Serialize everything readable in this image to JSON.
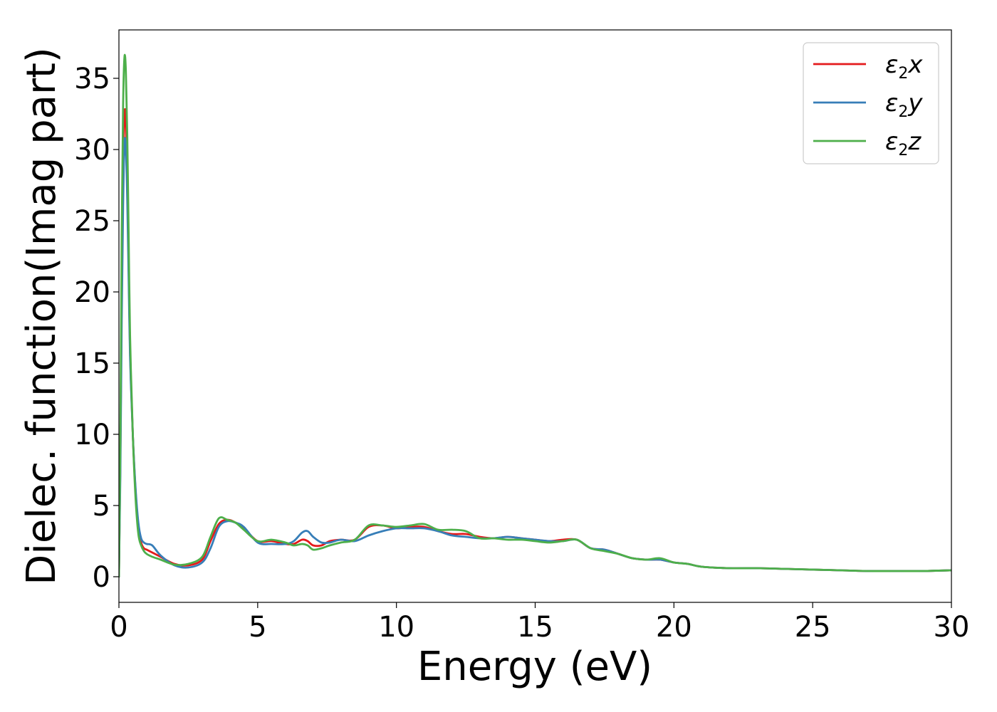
{
  "chart_data": {
    "type": "line",
    "xlabel": "Energy (eV)",
    "ylabel": "Dielec. function(Imag part)",
    "xlim": [
      0,
      30
    ],
    "ylim": [
      -1.8,
      38.4
    ],
    "xticks": [
      0,
      5,
      10,
      15,
      20,
      25,
      30
    ],
    "yticks": [
      0,
      5,
      10,
      15,
      20,
      25,
      30,
      35
    ],
    "grid": false,
    "legend_position": "top-right",
    "series": [
      {
        "name": "ε2x",
        "name_base": "ε",
        "name_sub": "2",
        "name_suffix": "x",
        "color": "#e41a1c",
        "x": [
          0,
          0.05,
          0.1,
          0.15,
          0.2,
          0.25,
          0.3,
          0.35,
          0.4,
          0.5,
          0.6,
          0.7,
          0.8,
          0.9,
          1.0,
          1.2,
          1.5,
          2.0,
          2.5,
          3.0,
          3.3,
          3.6,
          3.9,
          4.2,
          4.5,
          5.0,
          5.5,
          6.0,
          6.3,
          6.6,
          6.8,
          7.0,
          7.3,
          7.6,
          8.0,
          8.5,
          9.0,
          9.5,
          10.0,
          10.5,
          11.0,
          11.5,
          12.0,
          12.5,
          13.0,
          13.5,
          14.0,
          14.5,
          15.0,
          15.5,
          16.0,
          16.5,
          17.0,
          17.5,
          18.0,
          18.5,
          19.0,
          19.5,
          20.0,
          20.5,
          21.0,
          22.0,
          23.0,
          24.0,
          25.0,
          26.0,
          27.0,
          28.0,
          29.0,
          30.0
        ],
        "values": [
          0,
          8,
          20,
          28,
          32.5,
          32,
          28,
          22,
          16,
          10,
          6,
          3.5,
          2.4,
          2.0,
          1.9,
          1.7,
          1.4,
          0.9,
          0.8,
          1.2,
          2.5,
          3.7,
          4.0,
          3.8,
          3.4,
          2.5,
          2.5,
          2.3,
          2.3,
          2.6,
          2.5,
          2.2,
          2.2,
          2.5,
          2.6,
          2.6,
          3.5,
          3.6,
          3.4,
          3.5,
          3.5,
          3.2,
          3.0,
          3.0,
          2.8,
          2.7,
          2.8,
          2.7,
          2.6,
          2.5,
          2.6,
          2.6,
          2.0,
          1.9,
          1.6,
          1.3,
          1.2,
          1.2,
          1.0,
          0.9,
          0.7,
          0.6,
          0.6,
          0.55,
          0.5,
          0.45,
          0.4,
          0.4,
          0.4,
          0.45
        ]
      },
      {
        "name": "ε2y",
        "name_base": "ε",
        "name_sub": "2",
        "name_suffix": "y",
        "color": "#377eb8",
        "x": [
          0,
          0.05,
          0.1,
          0.15,
          0.2,
          0.25,
          0.3,
          0.35,
          0.4,
          0.5,
          0.6,
          0.7,
          0.8,
          0.9,
          1.0,
          1.2,
          1.5,
          2.0,
          2.5,
          3.0,
          3.3,
          3.6,
          3.9,
          4.2,
          4.5,
          5.0,
          5.5,
          6.0,
          6.3,
          6.6,
          6.8,
          7.0,
          7.3,
          7.6,
          8.0,
          8.5,
          9.0,
          9.5,
          10.0,
          10.5,
          11.0,
          11.5,
          12.0,
          12.5,
          13.0,
          13.5,
          14.0,
          14.5,
          15.0,
          15.5,
          16.0,
          16.5,
          17.0,
          17.5,
          18.0,
          18.5,
          19.0,
          19.5,
          20.0,
          20.5,
          21.0,
          22.0,
          23.0,
          24.0,
          25.0,
          26.0,
          27.0,
          28.0,
          29.0,
          30.0
        ],
        "values": [
          0,
          7,
          18,
          26,
          30.5,
          30,
          26.5,
          21,
          15.5,
          10,
          6.2,
          3.8,
          2.7,
          2.4,
          2.3,
          2.2,
          1.5,
          0.8,
          0.65,
          1.0,
          2.0,
          3.5,
          3.9,
          3.8,
          3.5,
          2.4,
          2.3,
          2.3,
          2.5,
          3.1,
          3.2,
          2.8,
          2.4,
          2.4,
          2.6,
          2.5,
          2.9,
          3.2,
          3.4,
          3.4,
          3.4,
          3.2,
          2.9,
          2.8,
          2.7,
          2.7,
          2.8,
          2.7,
          2.6,
          2.5,
          2.5,
          2.6,
          2.0,
          1.9,
          1.6,
          1.3,
          1.2,
          1.2,
          1.0,
          0.9,
          0.7,
          0.6,
          0.6,
          0.55,
          0.5,
          0.45,
          0.4,
          0.4,
          0.4,
          0.45
        ]
      },
      {
        "name": "ε2z",
        "name_base": "ε",
        "name_sub": "2",
        "name_suffix": "z",
        "color": "#4daf4a",
        "x": [
          0,
          0.05,
          0.1,
          0.15,
          0.2,
          0.25,
          0.3,
          0.35,
          0.4,
          0.5,
          0.6,
          0.7,
          0.8,
          0.9,
          1.0,
          1.2,
          1.5,
          2.0,
          2.5,
          3.0,
          3.3,
          3.6,
          3.9,
          4.2,
          4.5,
          5.0,
          5.5,
          6.0,
          6.3,
          6.6,
          6.8,
          7.0,
          7.3,
          7.6,
          8.0,
          8.5,
          9.0,
          9.5,
          10.0,
          10.5,
          11.0,
          11.5,
          12.0,
          12.5,
          13.0,
          13.5,
          14.0,
          14.5,
          15.0,
          15.5,
          16.0,
          16.5,
          17.0,
          17.5,
          18.0,
          18.5,
          19.0,
          19.5,
          20.0,
          20.5,
          21.0,
          22.0,
          23.0,
          24.0,
          25.0,
          26.0,
          27.0,
          28.0,
          29.0,
          30.0
        ],
        "values": [
          0,
          9,
          24,
          33,
          36.5,
          35.5,
          31,
          24,
          17,
          10,
          5.5,
          3.0,
          2.2,
          1.8,
          1.6,
          1.4,
          1.2,
          0.85,
          0.9,
          1.4,
          2.8,
          4.1,
          4.0,
          3.8,
          3.3,
          2.5,
          2.6,
          2.4,
          2.2,
          2.3,
          2.2,
          1.9,
          2.0,
          2.2,
          2.4,
          2.6,
          3.6,
          3.6,
          3.5,
          3.6,
          3.7,
          3.3,
          3.3,
          3.2,
          2.7,
          2.7,
          2.6,
          2.6,
          2.5,
          2.4,
          2.5,
          2.6,
          2.0,
          1.8,
          1.6,
          1.3,
          1.2,
          1.3,
          1.0,
          0.9,
          0.7,
          0.6,
          0.6,
          0.55,
          0.5,
          0.45,
          0.4,
          0.4,
          0.4,
          0.45
        ]
      }
    ]
  }
}
